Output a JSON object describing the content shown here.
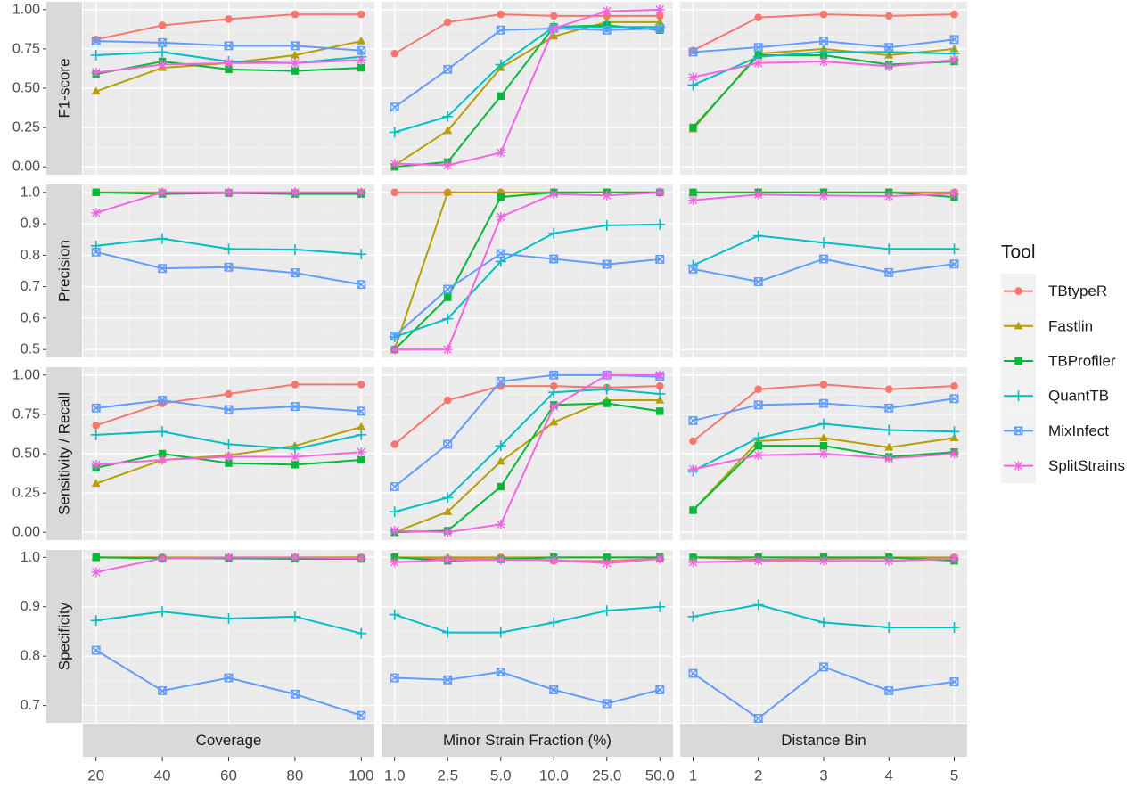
{
  "chart_data": {
    "type": "line",
    "facet_rows": [
      "F1-score",
      "Precision",
      "Sensitivity / Recall",
      "Specificity"
    ],
    "facet_cols": [
      "Coverage",
      "Minor Strain Fraction (%)",
      "Distance Bin"
    ],
    "x_categories": [
      [
        "20",
        "40",
        "60",
        "80",
        "100"
      ],
      [
        "1.0",
        "2.5",
        "5.0",
        "10.0",
        "25.0",
        "50.0"
      ],
      [
        "1",
        "2",
        "3",
        "4",
        "5"
      ]
    ],
    "y_ticks": [
      [
        "0.00",
        "0.25",
        "0.50",
        "0.75",
        "1.00"
      ],
      [
        "0.5",
        "0.6",
        "0.7",
        "0.8",
        "0.9",
        "1.0"
      ],
      [
        "0.00",
        "0.25",
        "0.50",
        "0.75",
        "1.00"
      ],
      [
        "0.7",
        "0.8",
        "0.9",
        "1.0"
      ]
    ],
    "y_ranges": [
      [
        -0.05,
        1.05
      ],
      [
        0.475,
        1.025
      ],
      [
        -0.05,
        1.05
      ],
      [
        0.665,
        1.015
      ]
    ],
    "legend": {
      "title": "Tool",
      "position": "right"
    },
    "grid": true,
    "series": [
      {
        "name": "TBtypeR",
        "color": "#F8766D",
        "marker": "circle",
        "values": [
          [
            [
              0.81,
              0.9,
              0.94,
              0.97,
              0.97
            ],
            [
              0.72,
              0.92,
              0.97,
              0.96,
              0.96,
              0.96
            ],
            [
              0.74,
              0.95,
              0.97,
              0.96,
              0.97
            ]
          ],
          [
            [
              1.0,
              1.0,
              1.0,
              1.0,
              1.0
            ],
            [
              1.0,
              1.0,
              1.0,
              1.0,
              1.0,
              1.0
            ],
            [
              1.0,
              1.0,
              1.0,
              1.0,
              1.0
            ]
          ],
          [
            [
              0.68,
              0.82,
              0.88,
              0.94,
              0.94
            ],
            [
              0.56,
              0.84,
              0.93,
              0.93,
              0.92,
              0.93
            ],
            [
              0.58,
              0.91,
              0.94,
              0.91,
              0.93
            ]
          ],
          [
            [
              1.0,
              1.0,
              0.998,
              1.0,
              1.0
            ],
            [
              1.0,
              0.997,
              1.0,
              0.993,
              0.993,
              0.997
            ],
            [
              1.0,
              0.995,
              0.997,
              0.998,
              1.0
            ]
          ]
        ]
      },
      {
        "name": "Fastlin",
        "color": "#B79F00",
        "marker": "triangle",
        "values": [
          [
            [
              0.48,
              0.63,
              0.66,
              0.71,
              0.8
            ],
            [
              0.01,
              0.23,
              0.63,
              0.83,
              0.92,
              0.92
            ],
            [
              0.24,
              0.72,
              0.75,
              0.71,
              0.75
            ]
          ],
          [
            [
              1.0,
              1.0,
              1.0,
              1.0,
              1.0
            ],
            [
              0.5,
              1.0,
              1.0,
              1.0,
              1.0,
              1.0
            ],
            [
              1.0,
              1.0,
              1.0,
              1.0,
              1.0
            ]
          ],
          [
            [
              0.31,
              0.46,
              0.49,
              0.55,
              0.67
            ],
            [
              0.0,
              0.13,
              0.45,
              0.7,
              0.84,
              0.84
            ],
            [
              0.14,
              0.58,
              0.6,
              0.54,
              0.6
            ]
          ],
          [
            [
              1.0,
              1.0,
              1.0,
              1.0,
              1.0
            ],
            [
              1.0,
              1.0,
              1.0,
              1.0,
              1.0,
              1.0
            ],
            [
              1.0,
              1.0,
              1.0,
              1.0,
              1.0
            ]
          ]
        ]
      },
      {
        "name": "TBProfiler",
        "color": "#00BA38",
        "marker": "square",
        "values": [
          [
            [
              0.59,
              0.67,
              0.62,
              0.61,
              0.63
            ],
            [
              0.0,
              0.03,
              0.45,
              0.89,
              0.9,
              0.87
            ],
            [
              0.25,
              0.71,
              0.71,
              0.65,
              0.67
            ]
          ],
          [
            [
              1.0,
              0.995,
              0.998,
              0.995,
              0.995
            ],
            [
              0.5,
              0.666,
              0.985,
              1.0,
              1.0,
              1.0
            ],
            [
              1.0,
              1.0,
              1.0,
              1.0,
              0.985
            ]
          ],
          [
            [
              0.41,
              0.5,
              0.44,
              0.43,
              0.46
            ],
            [
              0.0,
              0.01,
              0.29,
              0.81,
              0.82,
              0.77
            ],
            [
              0.14,
              0.55,
              0.55,
              0.48,
              0.51
            ]
          ],
          [
            [
              1.0,
              0.998,
              0.998,
              0.997,
              0.997
            ],
            [
              1.0,
              0.993,
              0.996,
              1.0,
              1.0,
              1.0
            ],
            [
              1.0,
              1.0,
              1.0,
              1.0,
              0.993
            ]
          ]
        ]
      },
      {
        "name": "QuantTB",
        "color": "#00BFC4",
        "marker": "plus",
        "values": [
          [
            [
              0.71,
              0.73,
              0.67,
              0.66,
              0.7
            ],
            [
              0.22,
              0.32,
              0.65,
              0.89,
              0.89,
              0.89
            ],
            [
              0.52,
              0.7,
              0.73,
              0.73,
              0.72
            ]
          ],
          [
            [
              0.83,
              0.853,
              0.82,
              0.818,
              0.803
            ],
            [
              0.54,
              0.598,
              0.78,
              0.87,
              0.895,
              0.898
            ],
            [
              0.768,
              0.862,
              0.84,
              0.82,
              0.82
            ]
          ],
          [
            [
              0.62,
              0.64,
              0.56,
              0.53,
              0.62
            ],
            [
              0.13,
              0.22,
              0.55,
              0.89,
              0.91,
              0.88
            ],
            [
              0.39,
              0.6,
              0.69,
              0.65,
              0.64
            ]
          ],
          [
            [
              0.872,
              0.89,
              0.876,
              0.88,
              0.846
            ],
            [
              0.884,
              0.848,
              0.848,
              0.868,
              0.892,
              0.9
            ],
            [
              0.88,
              0.904,
              0.868,
              0.858,
              0.858
            ]
          ]
        ]
      },
      {
        "name": "MixInfect",
        "color": "#619CFF",
        "marker": "square-cross",
        "values": [
          [
            [
              0.8,
              0.79,
              0.77,
              0.77,
              0.74
            ],
            [
              0.38,
              0.62,
              0.87,
              0.88,
              0.87,
              0.88
            ],
            [
              0.73,
              0.76,
              0.8,
              0.76,
              0.81
            ]
          ],
          [
            [
              0.81,
              0.758,
              0.762,
              0.744,
              0.707
            ],
            [
              0.543,
              0.692,
              0.805,
              0.788,
              0.771,
              0.787
            ],
            [
              0.756,
              0.716,
              0.788,
              0.745,
              0.772
            ]
          ],
          [
            [
              0.79,
              0.84,
              0.78,
              0.8,
              0.77
            ],
            [
              0.29,
              0.56,
              0.96,
              1.0,
              1.0,
              0.99
            ],
            [
              0.71,
              0.81,
              0.82,
              0.79,
              0.85
            ]
          ],
          [
            [
              0.812,
              0.73,
              0.756,
              0.723,
              0.68
            ],
            [
              0.756,
              0.752,
              0.768,
              0.732,
              0.704,
              0.732
            ],
            [
              0.765,
              0.674,
              0.778,
              0.73,
              0.748
            ]
          ]
        ]
      },
      {
        "name": "SplitStrains",
        "color": "#F564E3",
        "marker": "star",
        "values": [
          [
            [
              0.6,
              0.65,
              0.66,
              0.66,
              0.68
            ],
            [
              0.02,
              0.01,
              0.09,
              0.88,
              0.99,
              1.0
            ],
            [
              0.57,
              0.66,
              0.67,
              0.64,
              0.68
            ]
          ],
          [
            [
              0.935,
              1.0,
              1.0,
              1.0,
              1.0
            ],
            [
              0.5,
              0.5,
              0.922,
              0.995,
              0.99,
              1.0
            ],
            [
              0.975,
              0.993,
              0.99,
              0.988,
              0.996
            ]
          ],
          [
            [
              0.43,
              0.46,
              0.48,
              0.48,
              0.51
            ],
            [
              0.01,
              0.0,
              0.05,
              0.8,
              1.0,
              1.0
            ],
            [
              0.4,
              0.49,
              0.5,
              0.47,
              0.5
            ]
          ],
          [
            [
              0.97,
              0.998,
              1.0,
              1.0,
              0.998
            ],
            [
              0.99,
              0.995,
              0.995,
              0.995,
              0.988,
              0.997
            ],
            [
              0.99,
              0.993,
              0.993,
              0.993,
              0.997
            ]
          ]
        ]
      }
    ]
  }
}
